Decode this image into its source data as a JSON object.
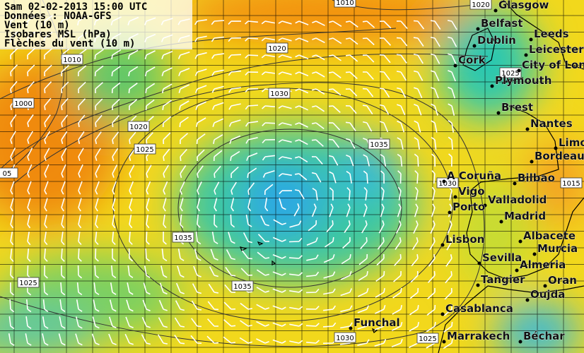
{
  "header": {
    "lines": [
      "Sam 02-02-2013 15:00 UTC",
      "Données : NOAA-GFS",
      "Vent (10 m)",
      "Isobares MSL (hPa)",
      "Flèches du vent (10 m)"
    ]
  },
  "isobar_labels": [
    "1010",
    "1020",
    "1020",
    "1010",
    "1030",
    "1000",
    "1020",
    "1025",
    "1035",
    "05",
    "1030",
    "1015",
    "1035",
    "1035",
    "1025",
    "1030",
    "1025",
    "1025"
  ],
  "cities": [
    "Glasgow",
    "Belfast",
    "Leeds",
    "Dublin",
    "Leicester",
    "Cork",
    "City of London",
    "Plymouth",
    "Brest",
    "Nantes",
    "Limoges",
    "Bordeaux",
    "A Coruña",
    "Bilbao",
    "Vigo",
    "Valladolid",
    "Porto",
    "Madrid",
    "Albacete",
    "Lisbon",
    "Murcia",
    "Sevilla",
    "Almeria",
    "Tangier",
    "Oran",
    "Oujda",
    "Casablanca",
    "Funchal",
    "Marrakech",
    "Béchar"
  ]
}
